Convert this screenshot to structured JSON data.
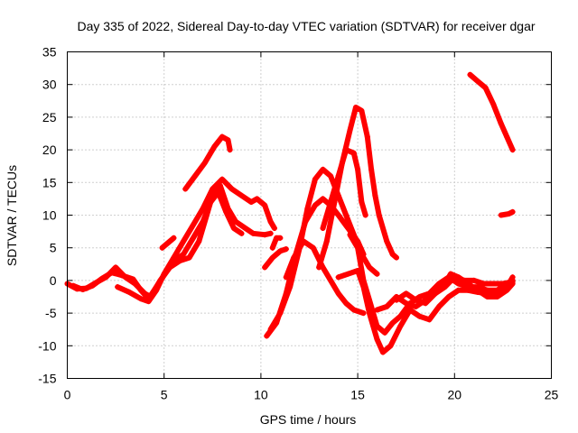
{
  "chart_data": {
    "type": "scatter",
    "title": "Day 335 of 2022, Sidereal Day-to-day VTEC variation (SDTVAR) for receiver dgar",
    "xlabel": "GPS time / hours",
    "ylabel": "SDTVAR / TECUs",
    "xlim": [
      0,
      25
    ],
    "ylim": [
      -15,
      35
    ],
    "xticks": [
      "0",
      "5",
      "10",
      "15",
      "20",
      "25"
    ],
    "yticks": [
      "-15",
      "-10",
      "-5",
      "0",
      "5",
      "10",
      "15",
      "20",
      "25",
      "30",
      "35"
    ],
    "grid": true,
    "color": "#ff0000",
    "marker": "+",
    "series": [
      {
        "name": "base-trace-a",
        "points": [
          [
            0,
            -0.5
          ],
          [
            0.5,
            -1.3
          ],
          [
            1,
            -1.2
          ],
          [
            1.5,
            -0.3
          ],
          [
            2,
            0.5
          ],
          [
            2.5,
            2.0
          ],
          [
            3,
            0.5
          ],
          [
            3.5,
            -0.5
          ],
          [
            4,
            -2.0
          ],
          [
            4.3,
            -2.5
          ],
          [
            4.8,
            0.0
          ],
          [
            5.3,
            2.0
          ],
          [
            5.8,
            3.0
          ],
          [
            6.3,
            3.5
          ],
          [
            6.8,
            6.0
          ],
          [
            7.2,
            10.0
          ],
          [
            7.6,
            14.0
          ],
          [
            7.9,
            14.5
          ],
          [
            8.3,
            11.0
          ],
          [
            8.7,
            9.0
          ],
          [
            9.2,
            8.0
          ],
          [
            9.6,
            7.2
          ],
          [
            10.2,
            7.0
          ],
          [
            10.5,
            7.2
          ]
        ]
      },
      {
        "name": "base-trace-b",
        "points": [
          [
            0.3,
            -0.8
          ],
          [
            0.8,
            -1.4
          ],
          [
            1.3,
            -0.8
          ],
          [
            1.8,
            0.3
          ],
          [
            2.3,
            1.2
          ],
          [
            2.8,
            0.8
          ],
          [
            3.4,
            0.2
          ],
          [
            3.8,
            -1.5
          ],
          [
            4.2,
            -2.8
          ],
          [
            4.6,
            -1.0
          ],
          [
            5,
            0.8
          ],
          [
            5.5,
            3.0
          ],
          [
            6,
            4.0
          ],
          [
            6.5,
            6.5
          ],
          [
            7,
            9.0
          ],
          [
            7.4,
            12.0
          ],
          [
            7.8,
            13.5
          ],
          [
            8.2,
            10.5
          ],
          [
            8.6,
            8.0
          ],
          [
            9.0,
            7.2
          ]
        ]
      },
      {
        "name": "base-trace-c",
        "points": [
          [
            2.6,
            -1.0
          ],
          [
            3.2,
            -1.8
          ],
          [
            3.8,
            -2.8
          ],
          [
            4.2,
            -3.2
          ],
          [
            4.6,
            -1.5
          ],
          [
            5.0,
            1.0
          ],
          [
            5.5,
            3.5
          ],
          [
            6.0,
            6.0
          ],
          [
            6.5,
            8.5
          ],
          [
            7.0,
            11.0
          ],
          [
            7.5,
            14.0
          ],
          [
            8.0,
            15.5
          ],
          [
            8.5,
            14.0
          ],
          [
            9.0,
            13.0
          ],
          [
            9.5,
            12.0
          ],
          [
            9.8,
            12.5
          ],
          [
            10.2,
            11.5
          ],
          [
            10.5,
            9.0
          ],
          [
            10.7,
            8.0
          ]
        ]
      },
      {
        "name": "upper-arc-left",
        "points": [
          [
            6.1,
            14.0
          ],
          [
            6.6,
            16.0
          ],
          [
            7.1,
            18.0
          ],
          [
            7.6,
            20.5
          ],
          [
            8.0,
            22.0
          ],
          [
            8.3,
            21.5
          ],
          [
            8.4,
            20.0
          ]
        ]
      },
      {
        "name": "short-segment-a",
        "points": [
          [
            4.9,
            5.0
          ],
          [
            5.5,
            6.5
          ]
        ]
      },
      {
        "name": "mid-rise-a",
        "points": [
          [
            10.3,
            -8.5
          ],
          [
            10.8,
            -6.5
          ],
          [
            11.3,
            -2.0
          ],
          [
            11.8,
            4.0
          ],
          [
            12.3,
            9.0
          ],
          [
            12.8,
            11.5
          ],
          [
            13.2,
            12.5
          ],
          [
            13.6,
            11.5
          ],
          [
            14.0,
            10.0
          ],
          [
            14.5,
            8.0
          ],
          [
            15.0,
            6.0
          ],
          [
            15.3,
            4.0
          ]
        ]
      },
      {
        "name": "mid-rise-b",
        "points": [
          [
            10.5,
            -7.5
          ],
          [
            11.0,
            -5.0
          ],
          [
            11.5,
            -1.0
          ],
          [
            12.0,
            5.0
          ],
          [
            12.4,
            11.0
          ],
          [
            12.8,
            15.5
          ],
          [
            13.2,
            17.0
          ],
          [
            13.6,
            16.0
          ],
          [
            14.0,
            13.0
          ],
          [
            14.4,
            10.0
          ],
          [
            14.8,
            7.0
          ],
          [
            15.2,
            4.0
          ],
          [
            15.6,
            2.0
          ],
          [
            16.0,
            1.0
          ]
        ]
      },
      {
        "name": "mid-rise-c",
        "points": [
          [
            11.3,
            0.5
          ],
          [
            11.7,
            3.5
          ],
          [
            12.2,
            6.0
          ],
          [
            12.7,
            5.0
          ],
          [
            13.2,
            2.0
          ],
          [
            13.6,
            0.0
          ],
          [
            14.0,
            -2.0
          ],
          [
            14.4,
            -3.5
          ],
          [
            14.8,
            -4.5
          ],
          [
            15.3,
            -5.0
          ]
        ]
      },
      {
        "name": "high-peak",
        "points": [
          [
            13.0,
            2.0
          ],
          [
            13.4,
            6.0
          ],
          [
            13.8,
            12.0
          ],
          [
            14.2,
            18.0
          ],
          [
            14.6,
            23.0
          ],
          [
            14.9,
            26.5
          ],
          [
            15.2,
            26.0
          ],
          [
            15.5,
            22.0
          ],
          [
            15.7,
            17.0
          ],
          [
            15.9,
            13.0
          ],
          [
            16.1,
            10.0
          ],
          [
            16.5,
            6.0
          ],
          [
            16.8,
            4.0
          ],
          [
            17.0,
            3.5
          ]
        ]
      },
      {
        "name": "second-peak",
        "points": [
          [
            13.2,
            8.0
          ],
          [
            13.6,
            12.0
          ],
          [
            14.0,
            16.0
          ],
          [
            14.4,
            20.0
          ],
          [
            14.8,
            19.5
          ],
          [
            15.0,
            17.0
          ],
          [
            15.2,
            12.0
          ],
          [
            15.4,
            10.0
          ]
        ]
      },
      {
        "name": "left-dip-short",
        "points": [
          [
            10.2,
            2.0
          ],
          [
            10.6,
            3.5
          ],
          [
            11.0,
            4.5
          ],
          [
            11.3,
            4.8
          ]
        ]
      },
      {
        "name": "small-rise",
        "points": [
          [
            10.6,
            5.0
          ],
          [
            10.8,
            6.5
          ],
          [
            11.0,
            6.5
          ]
        ]
      },
      {
        "name": "descent-a",
        "points": [
          [
            14.0,
            0.5
          ],
          [
            14.5,
            1.0
          ],
          [
            15.0,
            1.5
          ],
          [
            15.3,
            -1.0
          ],
          [
            15.6,
            -5.0
          ],
          [
            16.0,
            -9.0
          ],
          [
            16.3,
            -11.0
          ],
          [
            16.7,
            -10.0
          ],
          [
            17.2,
            -7.0
          ],
          [
            17.7,
            -4.5
          ],
          [
            18.2,
            -5.5
          ],
          [
            18.7,
            -6.0
          ],
          [
            19.2,
            -4.0
          ],
          [
            19.7,
            -2.5
          ],
          [
            20.2,
            -1.5
          ],
          [
            20.7,
            -1.5
          ],
          [
            21.2,
            -1.8
          ],
          [
            21.7,
            -2.0
          ],
          [
            22.2,
            -2.0
          ],
          [
            22.7,
            -1.0
          ],
          [
            23.0,
            0.5
          ]
        ]
      },
      {
        "name": "descent-b",
        "points": [
          [
            14.6,
            7.0
          ],
          [
            15.0,
            5.0
          ],
          [
            15.3,
            0.0
          ],
          [
            15.6,
            -3.0
          ],
          [
            16.0,
            -7.0
          ],
          [
            16.4,
            -8.0
          ],
          [
            16.8,
            -6.5
          ],
          [
            17.2,
            -5.5
          ],
          [
            17.7,
            -3.5
          ],
          [
            18.2,
            -2.5
          ],
          [
            18.7,
            -2.0
          ],
          [
            19.2,
            -0.5
          ],
          [
            19.7,
            0.5
          ],
          [
            20.2,
            -0.5
          ],
          [
            20.7,
            -1.0
          ],
          [
            21.2,
            -1.0
          ],
          [
            21.7,
            -1.5
          ],
          [
            22.2,
            -1.5
          ],
          [
            22.7,
            -0.5
          ],
          [
            23.0,
            0.0
          ]
        ]
      },
      {
        "name": "descent-c",
        "points": [
          [
            16.0,
            -4.5
          ],
          [
            16.5,
            -4.0
          ],
          [
            17.0,
            -2.5
          ],
          [
            17.5,
            -3.5
          ],
          [
            18.0,
            -4.0
          ],
          [
            18.5,
            -3.0
          ],
          [
            19.0,
            -2.0
          ],
          [
            19.5,
            -1.0
          ],
          [
            20.0,
            0.5
          ],
          [
            20.5,
            0.0
          ],
          [
            21.0,
            0.0
          ],
          [
            21.5,
            -0.5
          ],
          [
            22.0,
            -0.5
          ],
          [
            22.5,
            -0.5
          ],
          [
            23.0,
            -0.2
          ]
        ]
      },
      {
        "name": "descent-d",
        "points": [
          [
            17.0,
            -3.0
          ],
          [
            17.5,
            -2.0
          ],
          [
            18.0,
            -3.0
          ],
          [
            18.5,
            -3.5
          ],
          [
            19.0,
            -2.0
          ],
          [
            19.5,
            -0.5
          ],
          [
            19.8,
            1.0
          ],
          [
            20.2,
            0.5
          ],
          [
            20.7,
            -0.5
          ],
          [
            21.2,
            -1.5
          ],
          [
            21.7,
            -2.5
          ],
          [
            22.2,
            -2.5
          ],
          [
            22.7,
            -1.5
          ],
          [
            23.0,
            -0.5
          ]
        ]
      },
      {
        "name": "late-descent",
        "points": [
          [
            20.8,
            31.5
          ],
          [
            21.2,
            30.5
          ],
          [
            21.6,
            29.5
          ],
          [
            22.0,
            27.0
          ],
          [
            22.4,
            24.0
          ],
          [
            22.7,
            22.0
          ],
          [
            23.0,
            20.0
          ]
        ]
      },
      {
        "name": "late-short",
        "points": [
          [
            22.4,
            10.0
          ],
          [
            22.8,
            10.2
          ],
          [
            23.0,
            10.5
          ]
        ]
      }
    ]
  }
}
